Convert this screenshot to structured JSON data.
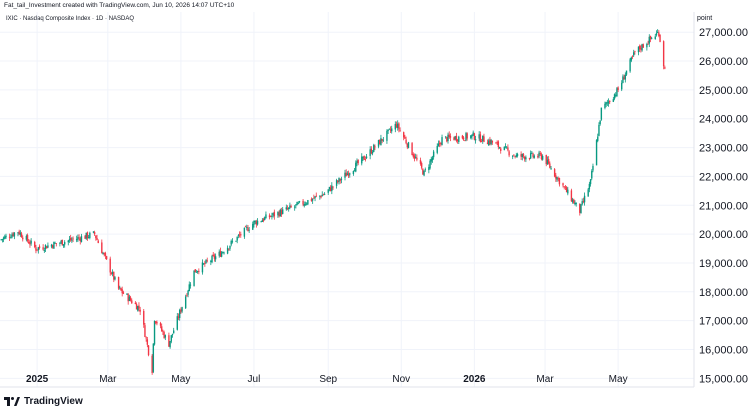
{
  "header": {
    "credit": "Fat_tail_Investment created with TradingView.com, Jun 10, 2026 14:07 UTC+10"
  },
  "symbol": {
    "line": "IXIC · Nasdaq Composite Index · 1D · NASDAQ"
  },
  "brand": {
    "name": "TradingView"
  },
  "axis": {
    "unit": "point"
  },
  "colors": {
    "up": "#089981",
    "down": "#f23645",
    "grid": "#f0f3fa",
    "text": "#131722"
  },
  "chart_data": {
    "type": "candlestick",
    "title": "",
    "xlabel": "",
    "ylabel": "point",
    "ylim": [
      14700,
      27700
    ],
    "y_ticks": [
      {
        "value": 15000,
        "label": "15,000.00"
      },
      {
        "value": 16000,
        "label": "16,000.00"
      },
      {
        "value": 17000,
        "label": "17,000.00"
      },
      {
        "value": 18000,
        "label": "18,000.00"
      },
      {
        "value": 19000,
        "label": "19,000.00"
      },
      {
        "value": 20000,
        "label": "20,000.00"
      },
      {
        "value": 21000,
        "label": "21,000.00"
      },
      {
        "value": 22000,
        "label": "22,000.00"
      },
      {
        "value": 23000,
        "label": "23,000.00"
      },
      {
        "value": 24000,
        "label": "24,000.00"
      },
      {
        "value": 25000,
        "label": "25,000.00"
      },
      {
        "value": 26000,
        "label": "26,000.00"
      },
      {
        "value": 27000,
        "label": "27,000.00"
      }
    ],
    "x_ticks": [
      {
        "date": "2025-01-01",
        "label": "2025",
        "bold": true
      },
      {
        "date": "2025-03-01",
        "label": "Mar"
      },
      {
        "date": "2025-05-01",
        "label": "May"
      },
      {
        "date": "2025-07-01",
        "label": "Jul"
      },
      {
        "date": "2025-09-01",
        "label": "Sep"
      },
      {
        "date": "2025-11-01",
        "label": "Nov"
      },
      {
        "date": "2026-01-01",
        "label": "2026",
        "bold": true
      },
      {
        "date": "2026-03-01",
        "label": "Mar"
      },
      {
        "date": "2026-05-01",
        "label": "May"
      }
    ],
    "date_range": [
      "2024-12-01",
      "2026-06-30"
    ],
    "path_anchors": [
      {
        "date": "2024-12-01",
        "close": 19800
      },
      {
        "date": "2024-12-16",
        "close": 20100
      },
      {
        "date": "2024-12-31",
        "close": 19500
      },
      {
        "date": "2025-01-20",
        "close": 19700
      },
      {
        "date": "2025-02-18",
        "close": 20000
      },
      {
        "date": "2025-03-10",
        "close": 18100
      },
      {
        "date": "2025-03-28",
        "close": 17400
      },
      {
        "date": "2025-04-07",
        "close": 15300
      },
      {
        "date": "2025-04-09",
        "close": 17100
      },
      {
        "date": "2025-04-21",
        "close": 16200
      },
      {
        "date": "2025-05-12",
        "close": 18700
      },
      {
        "date": "2025-06-02",
        "close": 19300
      },
      {
        "date": "2025-07-01",
        "close": 20400
      },
      {
        "date": "2025-08-01",
        "close": 20900
      },
      {
        "date": "2025-08-29",
        "close": 21400
      },
      {
        "date": "2025-09-30",
        "close": 22600
      },
      {
        "date": "2025-10-28",
        "close": 23800
      },
      {
        "date": "2025-11-20",
        "close": 22100
      },
      {
        "date": "2025-12-05",
        "close": 23300
      },
      {
        "date": "2025-12-31",
        "close": 23400
      },
      {
        "date": "2026-01-15",
        "close": 23200
      },
      {
        "date": "2026-02-05",
        "close": 22700
      },
      {
        "date": "2026-02-27",
        "close": 22700
      },
      {
        "date": "2026-03-30",
        "close": 20800
      },
      {
        "date": "2026-04-08",
        "close": 21800
      },
      {
        "date": "2026-04-17",
        "close": 24300
      },
      {
        "date": "2026-05-01",
        "close": 25000
      },
      {
        "date": "2026-05-15",
        "close": 26300
      },
      {
        "date": "2026-05-29",
        "close": 26800
      },
      {
        "date": "2026-06-04",
        "close": 27000
      },
      {
        "date": "2026-06-08",
        "close": 25900
      },
      {
        "date": "2026-06-09",
        "close": 25700
      }
    ]
  }
}
